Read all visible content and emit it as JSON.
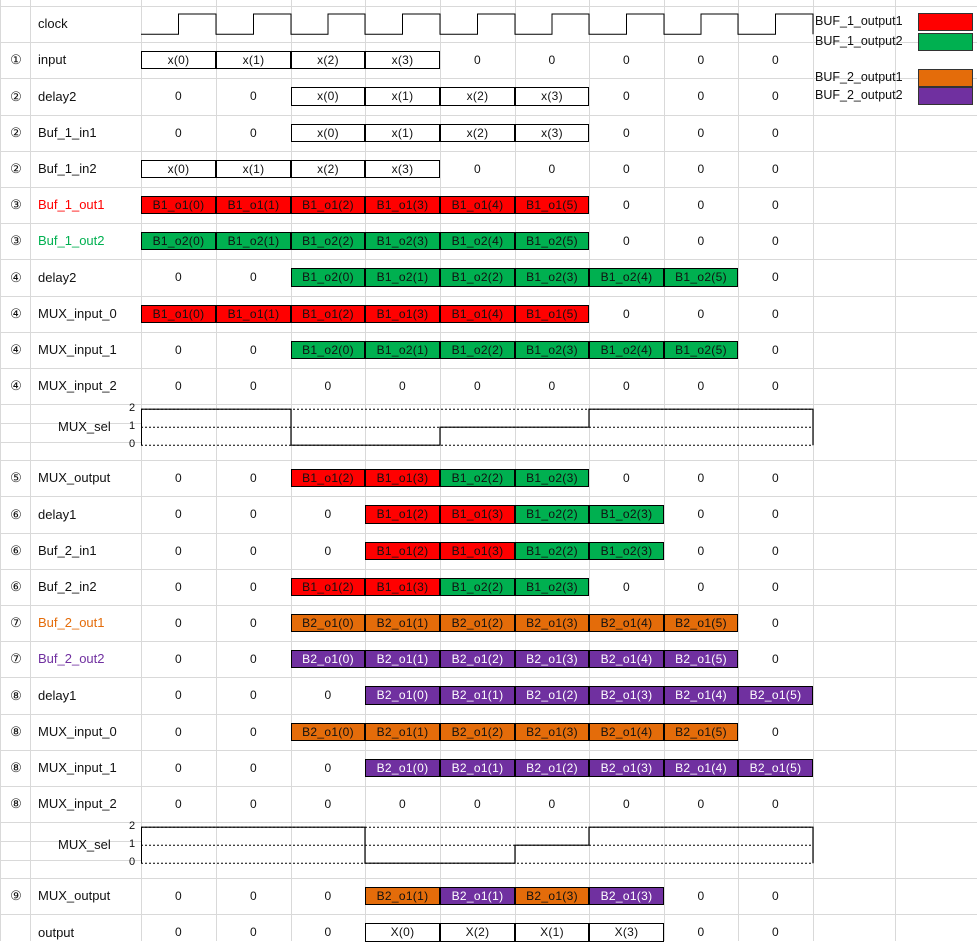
{
  "legend": [
    {
      "label": "BUF_1_output1",
      "color": "#ff0000"
    },
    {
      "label": "BUF_1_output2",
      "color": "#00b050"
    },
    {
      "label": "BUF_2_output1",
      "color": "#e46c0a"
    },
    {
      "label": "BUF_2_output2",
      "color": "#7030a0"
    }
  ],
  "colors": {
    "r": "#ff0000",
    "g": "#00b050",
    "o": "#e46c0a",
    "p": "#7030a0"
  },
  "mux_sel_ticks": [
    "2",
    "1",
    "0"
  ],
  "mux_sel_1": {
    "label": "MUX_sel",
    "levels": [
      2,
      2,
      0,
      0,
      1,
      1,
      2,
      2,
      2
    ]
  },
  "mux_sel_2": {
    "label": "MUX_sel",
    "levels": [
      2,
      2,
      2,
      0,
      0,
      1,
      2,
      2,
      2
    ]
  },
  "rows": [
    {
      "num": "",
      "label": "clock",
      "clock": true
    },
    {
      "num": "①",
      "label": "input",
      "cells": [
        "x(0)|b",
        "x(1)|b",
        "x(2)|b",
        "x(3)|b",
        "0",
        "0",
        "0",
        "0",
        "0"
      ]
    },
    {
      "num": "②",
      "label": "delay2",
      "cells": [
        "0",
        "0",
        "x(0)|b",
        "x(1)|b",
        "x(2)|b",
        "x(3)|b",
        "0",
        "0",
        "0"
      ]
    },
    {
      "num": "②",
      "label": "Buf_1_in1",
      "cells": [
        "0",
        "0",
        "x(0)|b",
        "x(1)|b",
        "x(2)|b",
        "x(3)|b",
        "0",
        "0",
        "0"
      ]
    },
    {
      "num": "②",
      "label": "Buf_1_in2",
      "cells": [
        "x(0)|b",
        "x(1)|b",
        "x(2)|b",
        "x(3)|b",
        "0",
        "0",
        "0",
        "0",
        "0"
      ]
    },
    {
      "num": "③",
      "label": "Buf_1_out1",
      "labelColor": "r",
      "cells": [
        "B1_o1(0)|r",
        "B1_o1(1)|r",
        "B1_o1(2)|r",
        "B1_o1(3)|r",
        "B1_o1(4)|r",
        "B1_o1(5)|r",
        "0",
        "0",
        "0"
      ]
    },
    {
      "num": "③",
      "label": "Buf_1_out2",
      "labelColor": "g",
      "cells": [
        "B1_o2(0)|g",
        "B1_o2(1)|g",
        "B1_o2(2)|g",
        "B1_o2(3)|g",
        "B1_o2(4)|g",
        "B1_o2(5)|g",
        "0",
        "0",
        "0"
      ]
    },
    {
      "num": "④",
      "label": "delay2",
      "cells": [
        "0",
        "0",
        "B1_o2(0)|g",
        "B1_o2(1)|g",
        "B1_o2(2)|g",
        "B1_o2(3)|g",
        "B1_o2(4)|g",
        "B1_o2(5)|g",
        "0"
      ]
    },
    {
      "num": "④",
      "label": "MUX_input_0",
      "cells": [
        "B1_o1(0)|r",
        "B1_o1(1)|r",
        "B1_o1(2)|r",
        "B1_o1(3)|r",
        "B1_o1(4)|r",
        "B1_o1(5)|r",
        "0",
        "0",
        "0"
      ]
    },
    {
      "num": "④",
      "label": "MUX_input_1",
      "cells": [
        "0",
        "0",
        "B1_o2(0)|g",
        "B1_o2(1)|g",
        "B1_o2(2)|g",
        "B1_o2(3)|g",
        "B1_o2(4)|g",
        "B1_o2(5)|g",
        "0"
      ]
    },
    {
      "num": "④",
      "label": "MUX_input_2",
      "cells": [
        "0",
        "0",
        "0",
        "0",
        "0",
        "0",
        "0",
        "0",
        "0"
      ]
    },
    {
      "num": "",
      "label": "",
      "muxsel": "mux_sel_1"
    },
    {
      "num": "⑤",
      "label": "MUX_output",
      "cells": [
        "0",
        "0",
        "B1_o1(2)|r",
        "B1_o1(3)|r",
        "B1_o2(2)|g",
        "B1_o2(3)|g",
        "0",
        "0",
        "0"
      ]
    },
    {
      "num": "⑥",
      "label": "delay1",
      "cells": [
        "0",
        "0",
        "0",
        "B1_o1(2)|r",
        "B1_o1(3)|r",
        "B1_o2(2)|g",
        "B1_o2(3)|g",
        "0",
        "0"
      ]
    },
    {
      "num": "⑥",
      "label": "Buf_2_in1",
      "cells": [
        "0",
        "0",
        "0",
        "B1_o1(2)|r",
        "B1_o1(3)|r",
        "B1_o2(2)|g",
        "B1_o2(3)|g",
        "0",
        "0"
      ]
    },
    {
      "num": "⑥",
      "label": "Buf_2_in2",
      "cells": [
        "0",
        "0",
        "B1_o1(2)|r",
        "B1_o1(3)|r",
        "B1_o2(2)|g",
        "B1_o2(3)|g",
        "0",
        "0",
        "0"
      ]
    },
    {
      "num": "⑦",
      "label": "Buf_2_out1",
      "labelColor": "o",
      "cells": [
        "0",
        "0",
        "B2_o1(0)|o",
        "B2_o1(1)|o",
        "B2_o1(2)|o",
        "B2_o1(3)|o",
        "B2_o1(4)|o",
        "B2_o1(5)|o",
        "0"
      ]
    },
    {
      "num": "⑦",
      "label": "Buf_2_out2",
      "labelColor": "p",
      "cells": [
        "0",
        "0",
        "B2_o1(0)|p",
        "B2_o1(1)|p",
        "B2_o1(2)|p",
        "B2_o1(3)|p",
        "B2_o1(4)|p",
        "B2_o1(5)|p",
        "0"
      ]
    },
    {
      "num": "⑧",
      "label": "delay1",
      "cells": [
        "0",
        "0",
        "0",
        "B2_o1(0)|p",
        "B2_o1(1)|p",
        "B2_o1(2)|p",
        "B2_o1(3)|p",
        "B2_o1(4)|p",
        "B2_o1(5)|p"
      ]
    },
    {
      "num": "⑧",
      "label": "MUX_input_0",
      "cells": [
        "0",
        "0",
        "B2_o1(0)|o",
        "B2_o1(1)|o",
        "B2_o1(2)|o",
        "B2_o1(3)|o",
        "B2_o1(4)|o",
        "B2_o1(5)|o",
        "0"
      ]
    },
    {
      "num": "⑧",
      "label": "MUX_input_1",
      "cells": [
        "0",
        "0",
        "0",
        "B2_o1(0)|p",
        "B2_o1(1)|p",
        "B2_o1(2)|p",
        "B2_o1(3)|p",
        "B2_o1(4)|p",
        "B2_o1(5)|p"
      ]
    },
    {
      "num": "⑧",
      "label": "MUX_input_2",
      "cells": [
        "0",
        "0",
        "0",
        "0",
        "0",
        "0",
        "0",
        "0",
        "0"
      ]
    },
    {
      "num": "",
      "label": "",
      "muxsel": "mux_sel_2"
    },
    {
      "num": "⑨",
      "label": "MUX_output",
      "cells": [
        "0",
        "0",
        "0",
        "B2_o1(1)|o",
        "B2_o1(1)|p",
        "B2_o1(3)|o",
        "B2_o1(3)|p",
        "0",
        "0"
      ]
    },
    {
      "num": "",
      "label": "output",
      "cells": [
        "0",
        "0",
        "0",
        "X(0)|b",
        "X(2)|b",
        "X(1)|b",
        "X(3)|b",
        "0",
        "0"
      ]
    }
  ]
}
